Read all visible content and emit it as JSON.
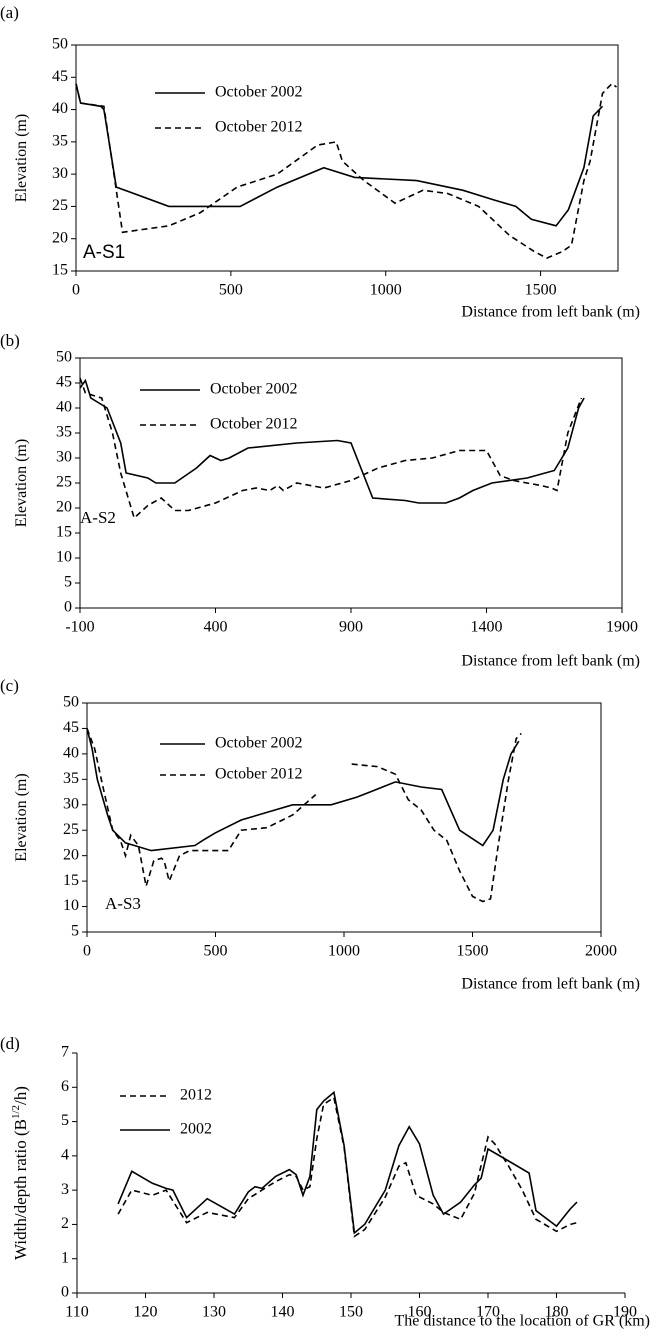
{
  "chart_data": [
    {
      "type": "line",
      "panel_label": "(a)",
      "ylabel": "Elevation (m)",
      "xlabel": "Distance  from left bank (m)",
      "annotation": "A-S1",
      "xlim": [
        0,
        1750
      ],
      "ylim": [
        15,
        50
      ],
      "xticks": [
        0,
        500,
        1000,
        1500
      ],
      "yticks": [
        15,
        20,
        25,
        30,
        35,
        40,
        45,
        50
      ],
      "frame": true,
      "legend": "upper-left",
      "series": [
        {
          "name": "October 2002",
          "color": "#000000",
          "dash": false,
          "x": [
            0,
            15,
            80,
            90,
            130,
            300,
            530,
            650,
            800,
            900,
            1100,
            1250,
            1350,
            1420,
            1470,
            1550,
            1590,
            1640,
            1670,
            1700
          ],
          "values": [
            44,
            41,
            40.5,
            40,
            28,
            25,
            25,
            28,
            31,
            29.5,
            29,
            27.5,
            26,
            25,
            23,
            22,
            24.5,
            31,
            39,
            40.5
          ]
        },
        {
          "name": "October 2012",
          "color": "#000000",
          "dash": true,
          "x": [
            0,
            15,
            90,
            150,
            300,
            400,
            520,
            650,
            780,
            840,
            860,
            930,
            1030,
            1120,
            1200,
            1300,
            1400,
            1480,
            1520,
            1570,
            1600,
            1640,
            1660,
            1700,
            1730,
            1745
          ],
          "values": [
            44,
            41,
            40.5,
            21,
            22,
            24,
            28,
            30,
            34.5,
            35,
            32,
            29,
            25.5,
            27.5,
            27,
            25,
            20.5,
            18,
            17,
            18,
            19,
            29,
            32,
            42.5,
            44,
            43.5
          ]
        }
      ]
    },
    {
      "type": "line",
      "panel_label": "(b)",
      "ylabel": "Elevation (m)",
      "xlabel": "Distance from left bank (m)",
      "annotation": "A-S2",
      "xlim": [
        -100,
        1900
      ],
      "ylim": [
        0,
        50
      ],
      "xticks": [
        -100,
        400,
        900,
        1400,
        1900
      ],
      "yticks": [
        0,
        5,
        10,
        15,
        20,
        25,
        30,
        35,
        40,
        45,
        50
      ],
      "frame": true,
      "legend": "upper-left",
      "series": [
        {
          "name": "October 2002",
          "color": "#000000",
          "dash": false,
          "x": [
            -100,
            -80,
            -60,
            0,
            50,
            70,
            150,
            180,
            250,
            330,
            380,
            420,
            450,
            520,
            700,
            850,
            900,
            980,
            1100,
            1150,
            1250,
            1300,
            1350,
            1420,
            1550,
            1650,
            1700,
            1740,
            1760
          ],
          "values": [
            44,
            45.5,
            42,
            40,
            33,
            27,
            26,
            25,
            25,
            28,
            30.5,
            29.5,
            30,
            32,
            33,
            33.5,
            33,
            22,
            21.5,
            21,
            21,
            22,
            23.5,
            25,
            26,
            27.5,
            32,
            40,
            42
          ]
        },
        {
          "name": "October 2012",
          "color": "#000000",
          "dash": true,
          "x": [
            -100,
            -80,
            -50,
            -20,
            20,
            50,
            100,
            150,
            200,
            250,
            300,
            400,
            500,
            550,
            600,
            630,
            650,
            700,
            800,
            900,
            1000,
            1100,
            1200,
            1300,
            1400,
            1450,
            1500,
            1600,
            1640,
            1660,
            1700,
            1750
          ],
          "values": [
            46,
            43,
            42.5,
            42,
            35,
            27,
            18,
            20.5,
            22,
            19.5,
            19.5,
            21,
            23.5,
            24,
            23.5,
            24.5,
            23.5,
            25,
            24,
            25.5,
            28,
            29.5,
            30,
            31.5,
            31.5,
            26.5,
            25.5,
            24.5,
            24,
            23.5,
            35,
            42
          ]
        }
      ]
    },
    {
      "type": "line",
      "panel_label": "(c)",
      "ylabel": "Elevation (m)",
      "xlabel": "Distance from left bank (m)",
      "annotation": "A-S3",
      "xlim": [
        0,
        2000
      ],
      "ylim": [
        5,
        50
      ],
      "xticks": [
        0,
        500,
        1000,
        1500,
        2000
      ],
      "yticks": [
        5,
        10,
        15,
        20,
        25,
        30,
        35,
        40,
        45,
        50
      ],
      "frame": true,
      "legend": "upper-left",
      "series": [
        {
          "name": "October 2002",
          "color": "#000000",
          "dash": false,
          "x": [
            0,
            20,
            40,
            80,
            100,
            150,
            250,
            420,
            450,
            500,
            600,
            700,
            800,
            900,
            950,
            1050,
            1100,
            1200,
            1300,
            1380,
            1450,
            1540,
            1580,
            1620,
            1650,
            1680
          ],
          "values": [
            45,
            41,
            35,
            28,
            25,
            22.5,
            21,
            22,
            23,
            24.5,
            27,
            28.5,
            30,
            30,
            30,
            31.5,
            32.5,
            34.5,
            33.5,
            33,
            25,
            22,
            25,
            35,
            40,
            42.5
          ]
        },
        {
          "name": "October 2012",
          "color": "#000000",
          "dash": true,
          "x": [
            0,
            30,
            60,
            100,
            130,
            150,
            170,
            200,
            230,
            260,
            290,
            300,
            320,
            360,
            400,
            450,
            550,
            600,
            700,
            800,
            890,
            960,
            1030,
            1130,
            1200,
            1250,
            1300,
            1350,
            1400,
            1450,
            1500,
            1540,
            1570,
            1600,
            1640,
            1670,
            1690
          ],
          "values": [
            45,
            41,
            34,
            25,
            23,
            20,
            24,
            22,
            14,
            19,
            19.5,
            19,
            15,
            20,
            21,
            21,
            21,
            25,
            25.5,
            28,
            32,
            null,
            38,
            37.5,
            36,
            31,
            29,
            25,
            23,
            17,
            12,
            11,
            11.5,
            22,
            35,
            43,
            44
          ]
        }
      ]
    },
    {
      "type": "line",
      "panel_label": "(d)",
      "ylabel": "Width/depth ratio (B",
      "ylabel_sup": "1/2",
      "ylabel_end": "/h)",
      "xlabel": "The distance to the location of GR (km)",
      "xlim": [
        110,
        190
      ],
      "ylim": [
        0,
        7
      ],
      "xticks": [
        110,
        120,
        130,
        140,
        150,
        160,
        170,
        180,
        190
      ],
      "yticks": [
        0,
        1,
        2,
        3,
        4,
        5,
        6,
        7
      ],
      "frame": false,
      "legend": "upper-left",
      "series": [
        {
          "name": "2012",
          "color": "#000000",
          "dash": true,
          "x": [
            116,
            118,
            121,
            123,
            126,
            129,
            133,
            135,
            137,
            139,
            141,
            142,
            143,
            144,
            145,
            146,
            147.5,
            149,
            150.5,
            152,
            155,
            157,
            158,
            159.5,
            162,
            163.5,
            166,
            168,
            170,
            171,
            173,
            175,
            177,
            180,
            182,
            183
          ],
          "values": [
            2.3,
            3.0,
            2.85,
            3.0,
            2.05,
            2.35,
            2.2,
            2.75,
            3.0,
            3.25,
            3.45,
            3.4,
            3.0,
            3.1,
            4.5,
            5.5,
            5.7,
            4.25,
            1.65,
            1.85,
            2.8,
            3.7,
            3.8,
            2.85,
            2.6,
            2.35,
            2.15,
            2.9,
            4.55,
            4.35,
            3.7,
            3.0,
            2.15,
            1.8,
            2.0,
            2.05
          ]
        },
        {
          "name": "2002",
          "color": "#000000",
          "dash": false,
          "x": [
            116,
            118,
            121,
            123,
            124,
            126,
            129,
            133,
            135,
            136,
            137,
            139,
            141,
            142,
            143,
            144,
            145,
            146,
            147.5,
            149,
            150.5,
            152,
            155,
            157,
            158.5,
            160,
            162,
            163.5,
            166,
            168,
            169,
            170,
            173,
            176,
            177,
            180,
            182,
            183
          ],
          "values": [
            2.6,
            3.55,
            3.2,
            3.05,
            3.0,
            2.2,
            2.75,
            2.3,
            2.95,
            3.1,
            3.05,
            3.4,
            3.6,
            3.45,
            2.85,
            3.4,
            5.35,
            5.6,
            5.85,
            4.3,
            1.75,
            2.0,
            3.0,
            4.3,
            4.85,
            4.35,
            2.85,
            2.3,
            2.65,
            3.15,
            3.35,
            4.2,
            3.85,
            3.5,
            2.4,
            1.95,
            2.45,
            2.65
          ]
        }
      ]
    }
  ]
}
